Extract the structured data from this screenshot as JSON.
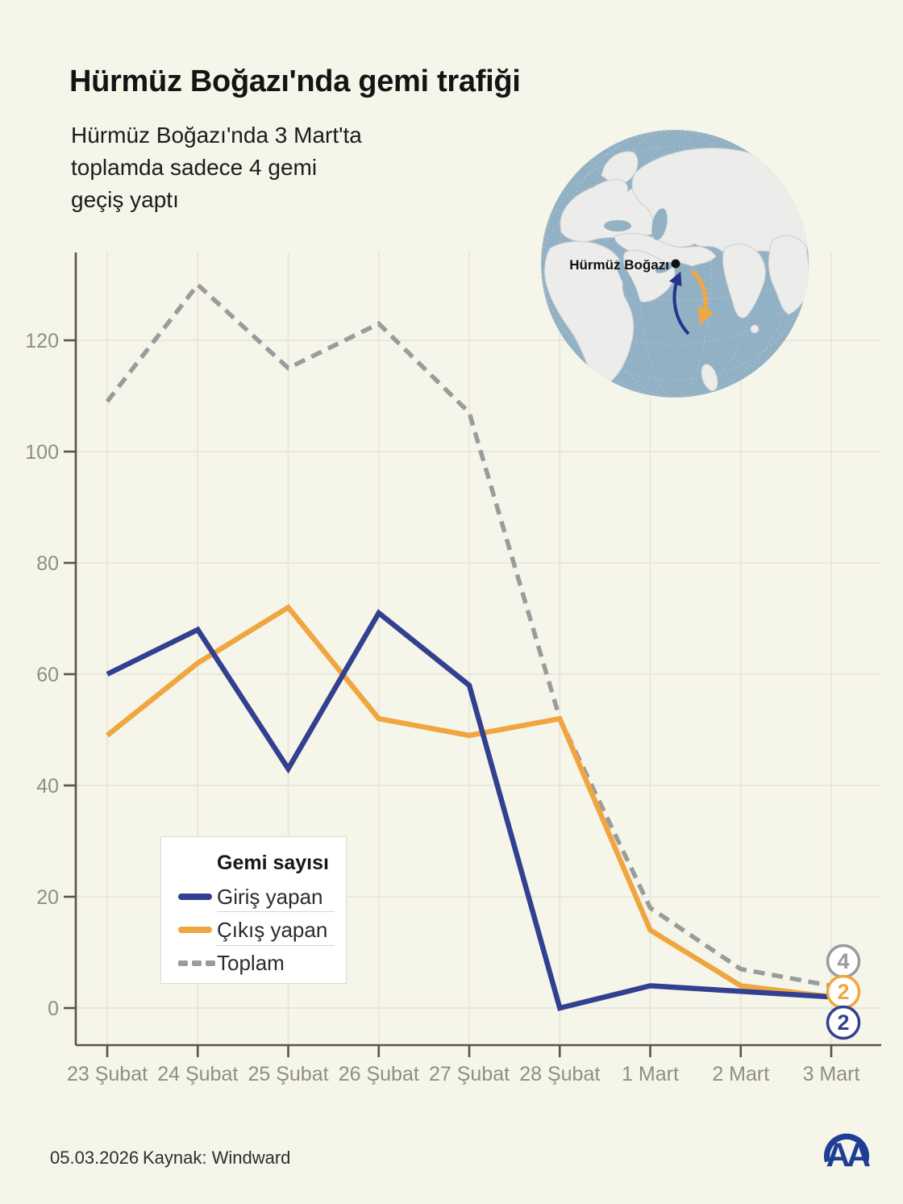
{
  "header": {
    "title": "Hürmüz Boğazı'nda gemi trafiği",
    "subtitle": "Hürmüz Boğazı'nda 3 Mart'ta\ntoplamda sadece 4 gemi\ngeçiş yaptı"
  },
  "map": {
    "label": "Hürmüz Boğazı",
    "ocean_color": "#93b1c4",
    "land_color": "#ececea",
    "arrow_in_color": "#26338b",
    "arrow_out_color": "#f3a742"
  },
  "legend": {
    "title": "Gemi sayısı",
    "items": [
      {
        "label": "Giriş yapan",
        "color": "#31408f",
        "style": "solid"
      },
      {
        "label": "Çıkış yapan",
        "color": "#f0a640",
        "style": "solid"
      },
      {
        "label": "Toplam",
        "color": "#9b9b9b",
        "style": "dashed"
      }
    ]
  },
  "chart_data": {
    "type": "line",
    "title": "Hürmüz Boğazı'nda gemi trafiği",
    "xlabel": "",
    "ylabel": "Gemi sayısı",
    "categories": [
      "23 Şubat",
      "24 Şubat",
      "25 Şubat",
      "26 Şubat",
      "27 Şubat",
      "28 Şubat",
      "1 Mart",
      "2 Mart",
      "3 Mart"
    ],
    "series": [
      {
        "name": "Giriş yapan",
        "color": "#31408f",
        "dash": false,
        "values": [
          60,
          68,
          43,
          71,
          58,
          0,
          4,
          3,
          2
        ]
      },
      {
        "name": "Çıkış yapan",
        "color": "#f0a640",
        "dash": false,
        "values": [
          49,
          62,
          72,
          52,
          49,
          52,
          14,
          4,
          2
        ]
      },
      {
        "name": "Toplam",
        "color": "#9b9b9b",
        "dash": true,
        "values": [
          109,
          130,
          115,
          123,
          107,
          52,
          18,
          7,
          4
        ]
      }
    ],
    "y_ticks": [
      0,
      20,
      40,
      60,
      80,
      100,
      120
    ],
    "ylim": [
      0,
      135
    ],
    "grid": true,
    "legend_position": "inside-bottom-left",
    "end_labels": [
      {
        "value": "4",
        "color": "#9b9b9b"
      },
      {
        "value": "2",
        "color": "#f0a640"
      },
      {
        "value": "2",
        "color": "#31408f"
      }
    ]
  },
  "footer": {
    "date": "05.03.2026",
    "source": "Kaynak: Windward",
    "logo": "AA",
    "logo_color": "#1d3e94"
  }
}
